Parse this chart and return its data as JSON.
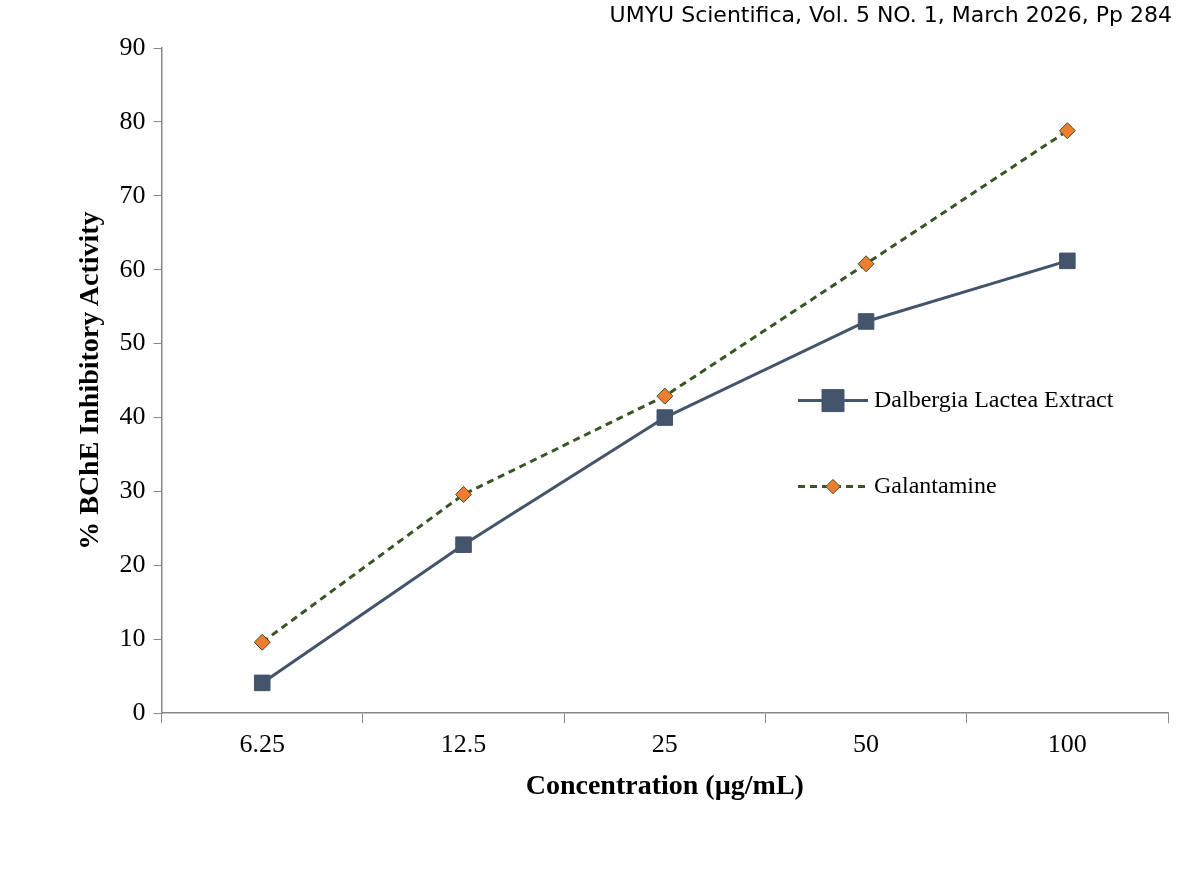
{
  "chart_data": {
    "type": "line",
    "xlabel": "Concentration (µg/mL)",
    "ylabel": "% BChE Inhibitory Activity",
    "annotations": [
      "UMYU Scientifica, Vol. 5 NO. 1, March 2026, Pp 284"
    ],
    "categories": [
      "6.25",
      "12.5",
      "25",
      "50",
      "100"
    ],
    "series": [
      {
        "name": "Dalbergia Lactea Extract",
        "color": "#44546a",
        "values": [
          4.1,
          22.8,
          40.0,
          53.0,
          61.2
        ],
        "marker": "square",
        "line_style": "solid"
      },
      {
        "name": "Galantamine",
        "color": "#375623",
        "colors": [
          "#ed7d31",
          "#ed7d31",
          "#ed7d31",
          "#ed7d31",
          "#ed7d31"
        ],
        "values": [
          9.6,
          29.6,
          42.9,
          60.8,
          78.8
        ],
        "marker": "diamond",
        "line_style": "dashed"
      }
    ],
    "ylim": [
      0,
      90
    ],
    "yticks": [
      0,
      10,
      20,
      30,
      40,
      50,
      60,
      70,
      80,
      90
    ],
    "grid": false,
    "legend": "right"
  }
}
